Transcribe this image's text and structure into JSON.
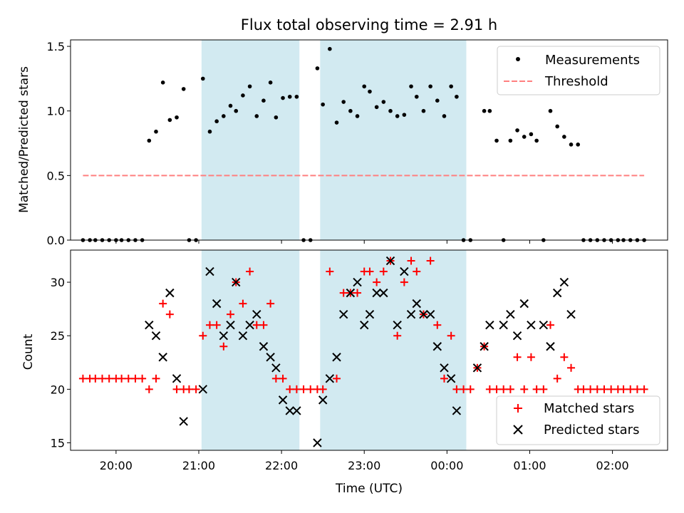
{
  "chart_data": [
    {
      "type": "scatter",
      "title": "Flux total observing time = 2.91 h",
      "ylabel": "Matched/Predicted stars",
      "ylim": [
        0,
        1.55
      ],
      "yticks": [
        0.0,
        0.5,
        1.0,
        1.5
      ],
      "ytick_labels": [
        "0.0",
        "0.5",
        "1.0",
        "1.5"
      ],
      "legend": {
        "placement": "top-right",
        "entries": [
          "Measurements",
          "Threshold"
        ]
      },
      "shaded_intervals": [
        [
          "21:02",
          "22:13"
        ],
        [
          "22:28",
          "00:14"
        ]
      ],
      "series": [
        {
          "name": "Measurements",
          "marker": "dot",
          "color": "#000000",
          "points": [
            [
              "19:36",
              0
            ],
            [
              "19:41",
              0
            ],
            [
              "19:45",
              0
            ],
            [
              "19:50",
              0
            ],
            [
              "19:55",
              0
            ],
            [
              "20:00",
              0
            ],
            [
              "20:04",
              0
            ],
            [
              "20:09",
              0
            ],
            [
              "20:14",
              0
            ],
            [
              "20:19",
              0
            ],
            [
              "20:24",
              0.77
            ],
            [
              "20:29",
              0.84
            ],
            [
              "20:34",
              1.22
            ],
            [
              "20:39",
              0.93
            ],
            [
              "20:44",
              0.95
            ],
            [
              "20:49",
              1.17
            ],
            [
              "20:53",
              0
            ],
            [
              "20:58",
              0
            ],
            [
              "21:03",
              1.25
            ],
            [
              "21:08",
              0.84
            ],
            [
              "21:13",
              0.92
            ],
            [
              "21:18",
              0.96
            ],
            [
              "21:23",
              1.04
            ],
            [
              "21:27",
              1.0
            ],
            [
              "21:32",
              1.12
            ],
            [
              "21:37",
              1.19
            ],
            [
              "21:42",
              0.96
            ],
            [
              "21:47",
              1.08
            ],
            [
              "21:52",
              1.22
            ],
            [
              "21:56",
              0.95
            ],
            [
              "22:01",
              1.1
            ],
            [
              "22:06",
              1.11
            ],
            [
              "22:11",
              1.11
            ],
            [
              "22:16",
              0
            ],
            [
              "22:21",
              0
            ],
            [
              "22:26",
              1.33
            ],
            [
              "22:30",
              1.05
            ],
            [
              "22:35",
              1.48
            ],
            [
              "22:40",
              0.91
            ],
            [
              "22:45",
              1.07
            ],
            [
              "22:50",
              1.0
            ],
            [
              "22:55",
              0.96
            ],
            [
              "23:00",
              1.19
            ],
            [
              "23:04",
              1.15
            ],
            [
              "23:09",
              1.03
            ],
            [
              "23:14",
              1.07
            ],
            [
              "23:19",
              1.0
            ],
            [
              "23:24",
              0.96
            ],
            [
              "23:29",
              0.97
            ],
            [
              "23:34",
              1.19
            ],
            [
              "23:38",
              1.11
            ],
            [
              "23:43",
              1.0
            ],
            [
              "23:48",
              1.19
            ],
            [
              "23:53",
              1.08
            ],
            [
              "23:58",
              0.96
            ],
            [
              "00:03",
              1.19
            ],
            [
              "00:07",
              1.11
            ],
            [
              "00:12",
              0
            ],
            [
              "00:17",
              0
            ],
            [
              "00:27",
              1.0
            ],
            [
              "00:31",
              1.0
            ],
            [
              "00:36",
              0.77
            ],
            [
              "00:41",
              0
            ],
            [
              "00:46",
              0.77
            ],
            [
              "00:51",
              0.85
            ],
            [
              "00:56",
              0.8
            ],
            [
              "01:01",
              0.82
            ],
            [
              "01:05",
              0.77
            ],
            [
              "01:10",
              0
            ],
            [
              "01:15",
              1.0
            ],
            [
              "01:20",
              0.88
            ],
            [
              "01:25",
              0.8
            ],
            [
              "01:30",
              0.74
            ],
            [
              "01:35",
              0.74
            ],
            [
              "01:39",
              0
            ],
            [
              "01:44",
              0
            ],
            [
              "01:49",
              0
            ],
            [
              "01:54",
              0
            ],
            [
              "01:59",
              0
            ],
            [
              "02:04",
              0
            ],
            [
              "02:08",
              0
            ],
            [
              "02:13",
              0
            ],
            [
              "02:18",
              0
            ],
            [
              "02:23",
              0
            ]
          ]
        },
        {
          "name": "Threshold",
          "marker": "dashed-line",
          "color": "#ff7f7f",
          "points": [
            [
              "19:36",
              0.5
            ],
            [
              "02:23",
              0.5
            ]
          ]
        }
      ]
    },
    {
      "type": "scatter",
      "xlabel": "Time (UTC)",
      "ylabel": "Count",
      "ylim": [
        14.3,
        33
      ],
      "yticks": [
        15,
        20,
        25,
        30
      ],
      "ytick_labels": [
        "15",
        "20",
        "25",
        "30"
      ],
      "xlim": [
        "19:27",
        "02:40"
      ],
      "xticks": [
        "20:00",
        "21:00",
        "22:00",
        "23:00",
        "00:00",
        "01:00",
        "02:00"
      ],
      "legend": {
        "placement": "bottom-right",
        "entries": [
          "Matched stars",
          "Predicted stars"
        ]
      },
      "shaded_intervals": [
        [
          "21:02",
          "22:13"
        ],
        [
          "22:28",
          "00:14"
        ]
      ],
      "series": [
        {
          "name": "Matched stars",
          "marker": "plus",
          "color": "#ff0000",
          "points": [
            [
              "19:36",
              21
            ],
            [
              "19:41",
              21
            ],
            [
              "19:45",
              21
            ],
            [
              "19:50",
              21
            ],
            [
              "19:55",
              21
            ],
            [
              "20:00",
              21
            ],
            [
              "20:04",
              21
            ],
            [
              "20:09",
              21
            ],
            [
              "20:14",
              21
            ],
            [
              "20:19",
              21
            ],
            [
              "20:24",
              20
            ],
            [
              "20:29",
              21
            ],
            [
              "20:34",
              28
            ],
            [
              "20:39",
              27
            ],
            [
              "20:44",
              20
            ],
            [
              "20:49",
              20
            ],
            [
              "20:53",
              20
            ],
            [
              "20:58",
              20
            ],
            [
              "21:03",
              25
            ],
            [
              "21:08",
              26
            ],
            [
              "21:13",
              26
            ],
            [
              "21:18",
              24
            ],
            [
              "21:23",
              27
            ],
            [
              "21:27",
              30
            ],
            [
              "21:32",
              28
            ],
            [
              "21:37",
              31
            ],
            [
              "21:42",
              26
            ],
            [
              "21:47",
              26
            ],
            [
              "21:52",
              28
            ],
            [
              "21:56",
              21
            ],
            [
              "22:01",
              21
            ],
            [
              "22:06",
              20
            ],
            [
              "22:11",
              20
            ],
            [
              "22:16",
              20
            ],
            [
              "22:21",
              20
            ],
            [
              "22:26",
              20
            ],
            [
              "22:30",
              20
            ],
            [
              "22:35",
              31
            ],
            [
              "22:40",
              21
            ],
            [
              "22:45",
              29
            ],
            [
              "22:50",
              29
            ],
            [
              "22:55",
              29
            ],
            [
              "23:00",
              31
            ],
            [
              "23:04",
              31
            ],
            [
              "23:09",
              30
            ],
            [
              "23:14",
              31
            ],
            [
              "23:19",
              32
            ],
            [
              "23:24",
              25
            ],
            [
              "23:29",
              30
            ],
            [
              "23:34",
              32
            ],
            [
              "23:38",
              31
            ],
            [
              "23:43",
              27
            ],
            [
              "23:48",
              32
            ],
            [
              "23:53",
              26
            ],
            [
              "23:58",
              21
            ],
            [
              "00:03",
              25
            ],
            [
              "00:07",
              20
            ],
            [
              "00:12",
              20
            ],
            [
              "00:17",
              20
            ],
            [
              "00:22",
              22
            ],
            [
              "00:27",
              24
            ],
            [
              "00:31",
              20
            ],
            [
              "00:36",
              20
            ],
            [
              "00:41",
              20
            ],
            [
              "00:46",
              20
            ],
            [
              "00:51",
              23
            ],
            [
              "00:56",
              20
            ],
            [
              "01:01",
              23
            ],
            [
              "01:05",
              20
            ],
            [
              "01:10",
              20
            ],
            [
              "01:15",
              26
            ],
            [
              "01:20",
              21
            ],
            [
              "01:25",
              23
            ],
            [
              "01:30",
              22
            ],
            [
              "01:35",
              20
            ],
            [
              "01:39",
              20
            ],
            [
              "01:44",
              20
            ],
            [
              "01:49",
              20
            ],
            [
              "01:54",
              20
            ],
            [
              "01:59",
              20
            ],
            [
              "02:04",
              20
            ],
            [
              "02:08",
              20
            ],
            [
              "02:13",
              20
            ],
            [
              "02:18",
              20
            ],
            [
              "02:23",
              20
            ]
          ]
        },
        {
          "name": "Predicted stars",
          "marker": "x",
          "color": "#000000",
          "points": [
            [
              "20:24",
              26
            ],
            [
              "20:29",
              25
            ],
            [
              "20:34",
              23
            ],
            [
              "20:39",
              29
            ],
            [
              "20:44",
              21
            ],
            [
              "20:49",
              17
            ],
            [
              "21:03",
              20
            ],
            [
              "21:08",
              31
            ],
            [
              "21:13",
              28
            ],
            [
              "21:18",
              25
            ],
            [
              "21:23",
              26
            ],
            [
              "21:27",
              30
            ],
            [
              "21:32",
              25
            ],
            [
              "21:37",
              26
            ],
            [
              "21:42",
              27
            ],
            [
              "21:47",
              24
            ],
            [
              "21:52",
              23
            ],
            [
              "21:56",
              22
            ],
            [
              "22:01",
              19
            ],
            [
              "22:06",
              18
            ],
            [
              "22:11",
              18
            ],
            [
              "22:26",
              15
            ],
            [
              "22:30",
              19
            ],
            [
              "22:35",
              21
            ],
            [
              "22:40",
              23
            ],
            [
              "22:45",
              27
            ],
            [
              "22:50",
              29
            ],
            [
              "22:55",
              30
            ],
            [
              "23:00",
              26
            ],
            [
              "23:04",
              27
            ],
            [
              "23:09",
              29
            ],
            [
              "23:14",
              29
            ],
            [
              "23:19",
              32
            ],
            [
              "23:24",
              26
            ],
            [
              "23:29",
              31
            ],
            [
              "23:34",
              27
            ],
            [
              "23:38",
              28
            ],
            [
              "23:43",
              27
            ],
            [
              "23:48",
              27
            ],
            [
              "23:53",
              24
            ],
            [
              "23:58",
              22
            ],
            [
              "00:03",
              21
            ],
            [
              "00:07",
              18
            ],
            [
              "00:22",
              22
            ],
            [
              "00:27",
              24
            ],
            [
              "00:31",
              26
            ],
            [
              "00:41",
              26
            ],
            [
              "00:46",
              27
            ],
            [
              "00:51",
              25
            ],
            [
              "00:56",
              28
            ],
            [
              "01:01",
              26
            ],
            [
              "01:10",
              26
            ],
            [
              "01:15",
              24
            ],
            [
              "01:20",
              29
            ],
            [
              "01:25",
              30
            ],
            [
              "01:30",
              27
            ]
          ]
        }
      ]
    }
  ],
  "colors": {
    "shade": "#add8e6",
    "measurements": "#000000",
    "threshold": "#ff7f7f",
    "matched": "#ff0000",
    "predicted": "#000000"
  }
}
